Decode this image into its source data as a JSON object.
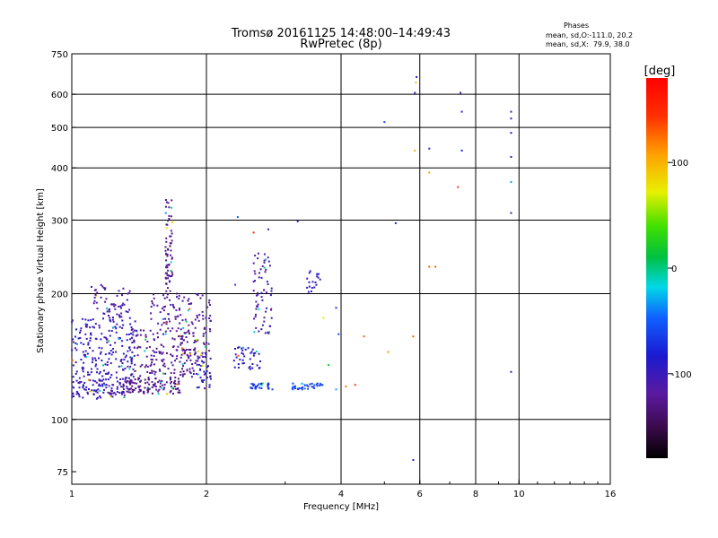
{
  "header": {
    "title_line1": "Tromsø 20161125 14:48:00–14:49:43",
    "title_line2": "RwPretec (8p)",
    "info_title": "Phases",
    "info_line1": "mean, sd,O:-111.0, 20.2",
    "info_line2": "mean, sd,X:  79.9, 38.0"
  },
  "colorbar": {
    "unit_label": "[deg]",
    "ticks": [
      {
        "value": 100,
        "label": "100"
      },
      {
        "value": 0,
        "label": "0"
      },
      {
        "value": -100,
        "label": "-100"
      }
    ],
    "range": [
      -180,
      180
    ]
  },
  "chart_data": {
    "type": "scatter",
    "title": "Tromsø 20161125 14:48:00–14:49:43",
    "subtitle": "RwPretec (8p)",
    "xlabel": "Frequency [MHz]",
    "ylabel": "Stationary phase Virtual Height [km]",
    "x_scale": "log",
    "y_scale": "log",
    "xlim": [
      1,
      16
    ],
    "ylim": [
      70,
      750
    ],
    "x_ticks": [
      {
        "value": 1,
        "label": "1"
      },
      {
        "value": 2,
        "label": "2"
      },
      {
        "value": 4,
        "label": "4"
      },
      {
        "value": 6,
        "label": "6"
      },
      {
        "value": 8,
        "label": "8"
      },
      {
        "value": 10,
        "label": "10"
      },
      {
        "value": 16,
        "label": "16"
      }
    ],
    "y_ticks": [
      {
        "value": 75,
        "label": "75"
      },
      {
        "value": 100,
        "label": "100"
      },
      {
        "value": 200,
        "label": "200"
      },
      {
        "value": 300,
        "label": "300"
      },
      {
        "value": 400,
        "label": "400"
      },
      {
        "value": 500,
        "label": "500"
      },
      {
        "value": 600,
        "label": "600"
      },
      {
        "value": 750,
        "label": "750"
      }
    ],
    "x_grid": [
      2,
      4,
      6,
      8,
      10
    ],
    "y_grid": [
      100,
      200,
      300,
      400,
      500,
      600
    ],
    "grid": true,
    "clusters": [
      {
        "x": [
          1.0,
          1.35
        ],
        "y": [
          112,
          125
        ],
        "phase": [
          -115,
          -90
        ],
        "count": 110
      },
      {
        "x": [
          1.0,
          1.4
        ],
        "y": [
          125,
          175
        ],
        "phase": [
          -110,
          -85
        ],
        "count": 200
      },
      {
        "x": [
          1.1,
          1.35
        ],
        "y": [
          175,
          210
        ],
        "phase": [
          -125,
          -100
        ],
        "count": 60
      },
      {
        "x": [
          1.3,
          1.75
        ],
        "y": [
          115,
          126
        ],
        "phase": [
          -135,
          -115
        ],
        "count": 120
      },
      {
        "x": [
          1.35,
          1.9
        ],
        "y": [
          126,
          165
        ],
        "phase": [
          -135,
          -110
        ],
        "count": 170
      },
      {
        "x": [
          1.5,
          1.75
        ],
        "y": [
          165,
          200
        ],
        "phase": [
          -130,
          -105
        ],
        "count": 50
      },
      {
        "x": [
          1.62,
          1.68
        ],
        "y": [
          200,
          340
        ],
        "phase": [
          -135,
          -120
        ],
        "count": 70
      },
      {
        "x": [
          1.75,
          2.05
        ],
        "y": [
          140,
          200
        ],
        "phase": [
          -130,
          -105
        ],
        "count": 80
      },
      {
        "x": [
          1.9,
          2.05
        ],
        "y": [
          118,
          145
        ],
        "phase": [
          -110,
          -85
        ],
        "count": 40
      },
      {
        "x": [
          2.3,
          2.65
        ],
        "y": [
          132,
          150
        ],
        "phase": [
          -100,
          -80
        ],
        "count": 40
      },
      {
        "x": [
          2.55,
          2.8
        ],
        "y": [
          160,
          250
        ],
        "phase": [
          -125,
          -95
        ],
        "count": 65
      },
      {
        "x": [
          2.5,
          2.85
        ],
        "y": [
          118,
          122
        ],
        "phase": [
          -80,
          -60
        ],
        "count": 30
      },
      {
        "x": [
          3.1,
          3.65
        ],
        "y": [
          118,
          122
        ],
        "phase": [
          -70,
          -45
        ],
        "count": 35
      },
      {
        "x": [
          3.35,
          3.6
        ],
        "y": [
          200,
          230
        ],
        "phase": [
          -100,
          -80
        ],
        "count": 18
      }
    ],
    "points": [
      {
        "x": 2.35,
        "y": 305,
        "phase": -50
      },
      {
        "x": 2.55,
        "y": 280,
        "phase": 150
      },
      {
        "x": 2.75,
        "y": 285,
        "phase": -95
      },
      {
        "x": 3.2,
        "y": 298,
        "phase": -85
      },
      {
        "x": 2.32,
        "y": 210,
        "phase": -60
      },
      {
        "x": 3.65,
        "y": 175,
        "phase": 70
      },
      {
        "x": 3.75,
        "y": 135,
        "phase": 20
      },
      {
        "x": 3.9,
        "y": 185,
        "phase": -70
      },
      {
        "x": 3.95,
        "y": 160,
        "phase": -60
      },
      {
        "x": 3.9,
        "y": 118,
        "phase": -30
      },
      {
        "x": 4.1,
        "y": 120,
        "phase": 120
      },
      {
        "x": 4.3,
        "y": 121,
        "phase": 140
      },
      {
        "x": 4.5,
        "y": 158,
        "phase": 130
      },
      {
        "x": 5.1,
        "y": 145,
        "phase": 110
      },
      {
        "x": 5.0,
        "y": 515,
        "phase": -60
      },
      {
        "x": 5.3,
        "y": 295,
        "phase": -80
      },
      {
        "x": 5.8,
        "y": 158,
        "phase": 130
      },
      {
        "x": 5.85,
        "y": 440,
        "phase": 100
      },
      {
        "x": 5.85,
        "y": 605,
        "phase": -90
      },
      {
        "x": 5.88,
        "y": 640,
        "phase": 95
      },
      {
        "x": 5.9,
        "y": 660,
        "phase": -85
      },
      {
        "x": 5.8,
        "y": 80,
        "phase": -100
      },
      {
        "x": 6.3,
        "y": 445,
        "phase": -80
      },
      {
        "x": 6.3,
        "y": 390,
        "phase": 110
      },
      {
        "x": 6.3,
        "y": 232,
        "phase": 130
      },
      {
        "x": 6.5,
        "y": 232,
        "phase": 130
      },
      {
        "x": 7.3,
        "y": 360,
        "phase": 140
      },
      {
        "x": 7.4,
        "y": 605,
        "phase": -110
      },
      {
        "x": 7.45,
        "y": 545,
        "phase": -100
      },
      {
        "x": 7.45,
        "y": 440,
        "phase": -85
      },
      {
        "x": 9.6,
        "y": 545,
        "phase": -110
      },
      {
        "x": 9.6,
        "y": 525,
        "phase": -100
      },
      {
        "x": 9.6,
        "y": 485,
        "phase": -85
      },
      {
        "x": 9.6,
        "y": 425,
        "phase": -90
      },
      {
        "x": 9.6,
        "y": 370,
        "phase": -30
      },
      {
        "x": 9.6,
        "y": 312,
        "phase": -100
      },
      {
        "x": 9.6,
        "y": 130,
        "phase": -100
      }
    ]
  }
}
